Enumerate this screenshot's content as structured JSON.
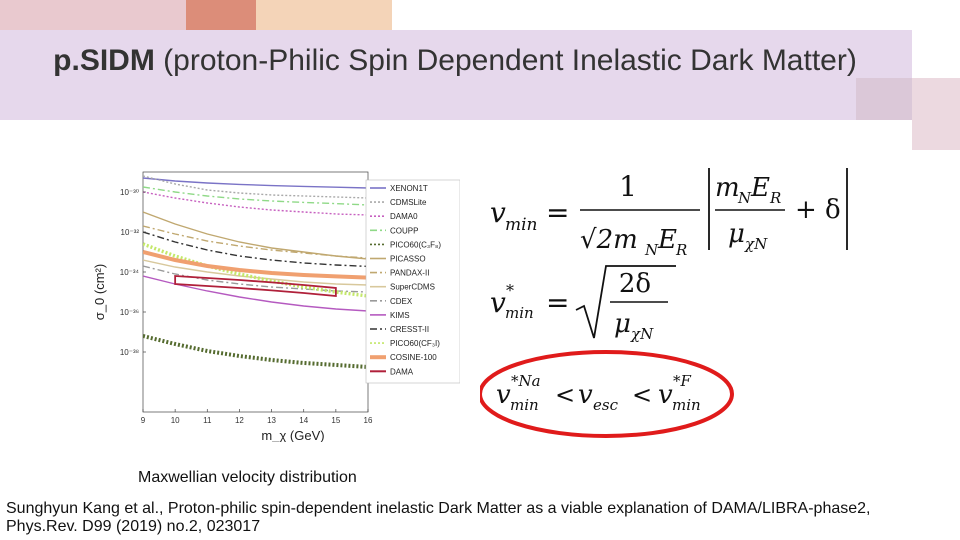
{
  "title": {
    "bold": "p.SIDM",
    "rest": " (proton-Philic Spin Dependent Inelastic Dark Matter)"
  },
  "chart_data": {
    "type": "line",
    "xlabel": "m_χ (GeV)",
    "ylabel": "σ_0 (cm²)",
    "xlim": [
      9,
      16
    ],
    "ylim_exponent": [
      -41,
      -29
    ],
    "x_ticks": [
      "9",
      "10",
      "11",
      "12",
      "13",
      "14",
      "15",
      "16"
    ],
    "y_ticks": [
      "10⁻³⁰",
      "10⁻³²",
      "10⁻³⁴",
      "10⁻³⁶",
      "10⁻³⁸"
    ],
    "legend_position": "right",
    "series": [
      {
        "name": "XENON1T",
        "color": "#7a73c6",
        "style": "solid",
        "x": [
          9,
          10,
          11,
          12,
          13,
          14,
          15,
          16
        ],
        "y_exp": [
          -29.3,
          -29.45,
          -29.55,
          -29.62,
          -29.68,
          -29.72,
          -29.76,
          -29.8
        ]
      },
      {
        "name": "CDMSLite",
        "color": "#a9a9a9",
        "style": "dotted",
        "x": [
          9,
          10,
          11,
          12,
          13,
          14,
          15,
          16
        ],
        "y_exp": [
          -29.2,
          -29.6,
          -29.9,
          -30.05,
          -30.15,
          -30.2,
          -30.25,
          -30.3
        ]
      },
      {
        "name": "DAMA0",
        "color": "#c761c0",
        "style": "dotted",
        "x": [
          9,
          10,
          11,
          12,
          13,
          14,
          15,
          16
        ],
        "y_exp": [
          -30.0,
          -30.3,
          -30.55,
          -30.75,
          -30.9,
          -31.0,
          -31.1,
          -31.15
        ]
      },
      {
        "name": "COUPP",
        "color": "#8fd987",
        "style": "dashdot",
        "x": [
          9,
          10,
          11,
          12,
          13,
          14,
          15,
          16
        ],
        "y_exp": [
          -29.75,
          -30.0,
          -30.2,
          -30.35,
          -30.45,
          -30.52,
          -30.58,
          -30.65
        ]
      },
      {
        "name": "PICO60(C₃F₈)",
        "color": "#556b2f",
        "style": "dotted",
        "x": [
          9,
          10,
          11,
          12,
          13,
          14,
          15,
          16
        ],
        "y_exp": [
          -37.2,
          -37.6,
          -37.95,
          -38.2,
          -38.4,
          -38.55,
          -38.65,
          -38.75
        ]
      },
      {
        "name": "PICASSO",
        "color": "#c0a870",
        "style": "solid",
        "x": [
          9,
          10,
          11,
          12,
          13,
          14,
          15,
          16
        ],
        "y_exp": [
          -31.0,
          -31.6,
          -32.1,
          -32.5,
          -32.8,
          -33.0,
          -33.2,
          -33.35
        ]
      },
      {
        "name": "PANDAX-II",
        "color": "#c0a870",
        "style": "dashdot",
        "x": [
          9,
          10,
          11,
          12,
          13,
          14,
          15,
          16
        ],
        "y_exp": [
          -31.7,
          -32.1,
          -32.45,
          -32.7,
          -32.9,
          -33.05,
          -33.2,
          -33.3
        ]
      },
      {
        "name": "SuperCDMS",
        "color": "#d8c89c",
        "style": "solid",
        "x": [
          9,
          10,
          11,
          12,
          13,
          14,
          15,
          16
        ],
        "y_exp": [
          -33.4,
          -33.75,
          -34.0,
          -34.2,
          -34.35,
          -34.5,
          -34.6,
          -34.65
        ]
      },
      {
        "name": "CDEX",
        "color": "#9a9a9a",
        "style": "dashdot",
        "x": [
          9,
          10,
          11,
          12,
          13,
          14,
          15,
          16
        ],
        "y_exp": [
          -33.7,
          -34.1,
          -34.4,
          -34.6,
          -34.75,
          -34.85,
          -34.95,
          -35.0
        ]
      },
      {
        "name": "KIMS",
        "color": "#b55ac0",
        "style": "solid",
        "x": [
          9,
          10,
          11,
          12,
          13,
          14,
          15,
          16
        ],
        "y_exp": [
          -34.2,
          -34.6,
          -34.95,
          -35.25,
          -35.5,
          -35.7,
          -35.85,
          -35.95
        ]
      },
      {
        "name": "CRESST-II",
        "color": "#333333",
        "style": "dashdot",
        "x": [
          9,
          10,
          11,
          12,
          13,
          14,
          15,
          16
        ],
        "y_exp": [
          -32.0,
          -32.5,
          -32.9,
          -33.2,
          -33.4,
          -33.55,
          -33.65,
          -33.72
        ]
      },
      {
        "name": "PICO60(CF₃I)",
        "color": "#c4e86a",
        "style": "dotted",
        "x": [
          9,
          10,
          11,
          12,
          13,
          14,
          15,
          16
        ],
        "y_exp": [
          -32.6,
          -33.2,
          -33.7,
          -34.1,
          -34.45,
          -34.75,
          -35.0,
          -35.2
        ]
      },
      {
        "name": "COSINE-100",
        "color": "#f0a070",
        "style": "thick",
        "x": [
          9,
          10,
          11,
          12,
          13,
          14,
          15,
          16
        ],
        "y_exp": [
          -33.0,
          -33.4,
          -33.7,
          -33.9,
          -34.05,
          -34.15,
          -34.22,
          -34.28
        ]
      },
      {
        "name": "DAMA",
        "color": "#b0203a",
        "style": "contour",
        "x": [
          10,
          11,
          12,
          13,
          14,
          15
        ],
        "y_exp": [
          -34.4,
          -34.5,
          -34.6,
          -34.72,
          -34.85,
          -35.0
        ]
      }
    ]
  },
  "equations": {
    "eq1_lhs": "v",
    "eq1_lhs_sub": "min",
    "eq1_eq": "=",
    "eq1_num": "1",
    "eq1_den": "√2m",
    "eq1_den_sub": "N",
    "eq1_den_tail": "E",
    "eq1_den_tail_sub": "R",
    "eq1_inner_num": "m",
    "eq1_inner_num_sub": "N",
    "eq1_inner_num_tail": "E",
    "eq1_inner_num_tail_sub": "R",
    "eq1_inner_den": "μ",
    "eq1_inner_den_sub": "χN",
    "eq1_plus": "+ δ",
    "eq2_lhs": "v",
    "eq2_lhs_sup": "*",
    "eq2_lhs_sub": "min",
    "eq2_eq": "=",
    "eq2_num": "2δ",
    "eq2_den": "μ",
    "eq2_den_sub": "χN",
    "eq3_a": "v",
    "eq3_a_sup": "*Na",
    "eq3_a_sub": "min",
    "eq3_lt1": "<",
    "eq3_b": "v",
    "eq3_b_sub": "esc",
    "eq3_lt2": "<",
    "eq3_c": "v",
    "eq3_c_sup": "*F",
    "eq3_c_sub": "min",
    "highlight_color": "#e01b1b"
  },
  "caption": "Maxwellian velocity distribution",
  "citation": "Sunghyun Kang et al., Proton-philic spin-dependent inelastic Dark Matter as a viable explanation of DAMA/LIBRA-phase2, Phys.Rev. D99 (2019) no.2, 023017"
}
